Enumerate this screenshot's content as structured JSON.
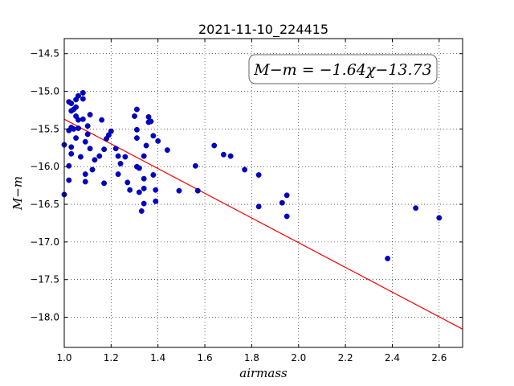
{
  "chart_data": {
    "type": "scatter",
    "title": "2021-11-10_224415",
    "xlabel": "airmass",
    "ylabel": "M−m",
    "xlim": [
      1.0,
      2.7
    ],
    "ylim": [
      -18.4,
      -14.3
    ],
    "y_inverted": true,
    "x_ticks": [
      1.0,
      1.2,
      1.4,
      1.6,
      1.8,
      2.0,
      2.2,
      2.4,
      2.6
    ],
    "x_tick_labels": [
      "1.0",
      "1.2",
      "1.4",
      "1.6",
      "1.8",
      "2.0",
      "2.2",
      "2.4",
      "2.6"
    ],
    "y_ticks": [
      -14.5,
      -15.0,
      -15.5,
      -16.0,
      -16.5,
      -17.0,
      -17.5,
      -18.0
    ],
    "y_tick_labels": [
      "−14.5",
      "−15.0",
      "−15.5",
      "−16.0",
      "−16.5",
      "−17.0",
      "−17.5",
      "−18.0"
    ],
    "grid": true,
    "annotation": "M−m = −1.64χ−13.73",
    "fit": {
      "slope": -1.64,
      "intercept": -13.73,
      "color": "#ff0000"
    },
    "marker_color": "#0000cc",
    "points": [
      [
        1.0,
        -15.71
      ],
      [
        1.0,
        -16.37
      ],
      [
        1.02,
        -15.14
      ],
      [
        1.02,
        -15.52
      ],
      [
        1.02,
        -15.99
      ],
      [
        1.02,
        -16.18
      ],
      [
        1.03,
        -15.16
      ],
      [
        1.03,
        -15.26
      ],
      [
        1.03,
        -15.48
      ],
      [
        1.03,
        -15.83
      ],
      [
        1.03,
        -15.74
      ],
      [
        1.04,
        -15.24
      ],
      [
        1.04,
        -15.5
      ],
      [
        1.05,
        -15.11
      ],
      [
        1.05,
        -15.21
      ],
      [
        1.05,
        -15.33
      ],
      [
        1.05,
        -15.62
      ],
      [
        1.06,
        -15.06
      ],
      [
        1.06,
        -15.38
      ],
      [
        1.06,
        -15.49
      ],
      [
        1.07,
        -15.87
      ],
      [
        1.08,
        -15.02
      ],
      [
        1.08,
        -15.1
      ],
      [
        1.08,
        -15.37
      ],
      [
        1.09,
        -15.67
      ],
      [
        1.09,
        -16.1
      ],
      [
        1.09,
        -16.2
      ],
      [
        1.1,
        -15.46
      ],
      [
        1.1,
        -15.57
      ],
      [
        1.11,
        -15.31
      ],
      [
        1.11,
        -15.76
      ],
      [
        1.12,
        -16.04
      ],
      [
        1.13,
        -15.91
      ],
      [
        1.15,
        -15.86
      ],
      [
        1.16,
        -15.38
      ],
      [
        1.17,
        -16.22
      ],
      [
        1.17,
        -15.77
      ],
      [
        1.18,
        -15.63
      ],
      [
        1.19,
        -15.58
      ],
      [
        1.2,
        -15.53
      ],
      [
        1.22,
        -15.76
      ],
      [
        1.23,
        -15.86
      ],
      [
        1.23,
        -16.1
      ],
      [
        1.24,
        -15.96
      ],
      [
        1.26,
        -15.87
      ],
      [
        1.27,
        -16.21
      ],
      [
        1.28,
        -16.31
      ],
      [
        1.3,
        -15.33
      ],
      [
        1.31,
        -15.24
      ],
      [
        1.31,
        -15.51
      ],
      [
        1.31,
        -15.62
      ],
      [
        1.31,
        -16.0
      ],
      [
        1.32,
        -16.02
      ],
      [
        1.32,
        -16.34
      ],
      [
        1.33,
        -16.59
      ],
      [
        1.34,
        -15.86
      ],
      [
        1.34,
        -16.16
      ],
      [
        1.34,
        -16.29
      ],
      [
        1.34,
        -16.49
      ],
      [
        1.35,
        -15.72
      ],
      [
        1.36,
        -15.34
      ],
      [
        1.36,
        -15.41
      ],
      [
        1.37,
        -15.4
      ],
      [
        1.38,
        -15.59
      ],
      [
        1.38,
        -16.11
      ],
      [
        1.39,
        -16.31
      ],
      [
        1.39,
        -16.46
      ],
      [
        1.4,
        -15.66
      ],
      [
        1.44,
        -15.78
      ],
      [
        1.49,
        -16.32
      ],
      [
        1.56,
        -15.99
      ],
      [
        1.57,
        -16.32
      ],
      [
        1.64,
        -15.72
      ],
      [
        1.68,
        -15.84
      ],
      [
        1.71,
        -15.86
      ],
      [
        1.77,
        -16.04
      ],
      [
        1.83,
        -16.11
      ],
      [
        1.83,
        -16.53
      ],
      [
        1.93,
        -16.48
      ],
      [
        1.95,
        -16.38
      ],
      [
        1.95,
        -16.66
      ],
      [
        2.38,
        -17.22
      ],
      [
        2.5,
        -16.55
      ],
      [
        2.6,
        -16.68
      ]
    ]
  }
}
